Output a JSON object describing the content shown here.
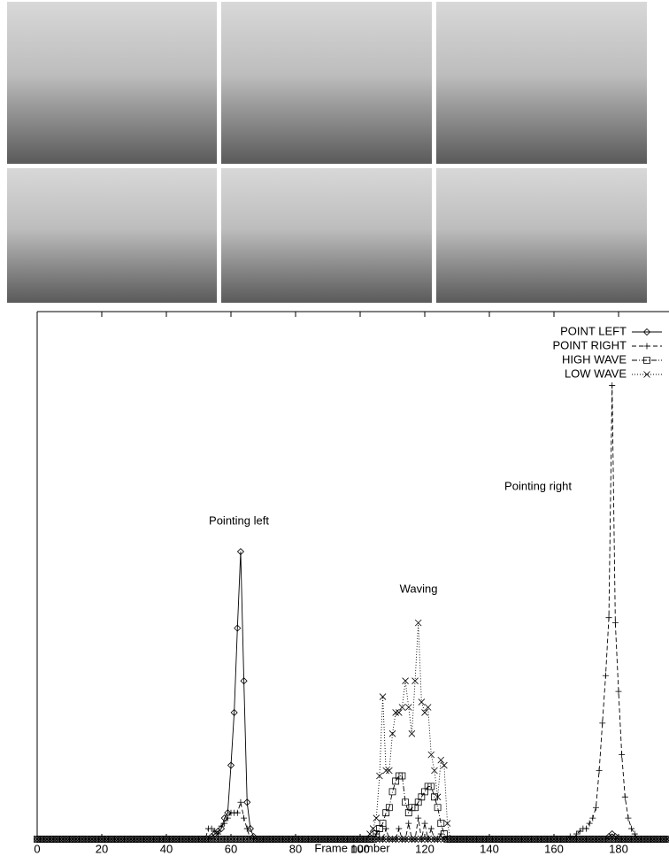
{
  "chart_data": {
    "type": "line",
    "x_label": "Frame number",
    "annotations": [
      "Pointing left",
      "Waving",
      "Pointing right"
    ],
    "xlim": [
      0,
      195
    ],
    "ylim": [
      0,
      1
    ],
    "xticks": [
      0,
      20,
      40,
      60,
      80,
      100,
      120,
      140,
      160,
      180
    ],
    "legend": "top-right",
    "x": [
      0,
      1,
      2,
      3,
      4,
      5,
      6,
      7,
      8,
      9,
      10,
      11,
      12,
      13,
      14,
      15,
      16,
      17,
      18,
      19,
      20,
      21,
      22,
      23,
      24,
      25,
      26,
      27,
      28,
      29,
      30,
      31,
      32,
      33,
      34,
      35,
      36,
      37,
      38,
      39,
      40,
      41,
      42,
      43,
      44,
      45,
      46,
      47,
      48,
      49,
      50,
      51,
      52,
      53,
      54,
      55,
      56,
      57,
      58,
      59,
      60,
      61,
      62,
      63,
      64,
      65,
      66,
      67,
      68,
      69,
      70,
      71,
      72,
      73,
      74,
      75,
      76,
      77,
      78,
      79,
      80,
      81,
      82,
      83,
      84,
      85,
      86,
      87,
      88,
      89,
      90,
      91,
      92,
      93,
      94,
      95,
      96,
      97,
      98,
      99,
      100,
      101,
      102,
      103,
      104,
      105,
      106,
      107,
      108,
      109,
      110,
      111,
      112,
      113,
      114,
      115,
      116,
      117,
      118,
      119,
      120,
      121,
      122,
      123,
      124,
      125,
      126,
      127,
      128,
      129,
      130,
      131,
      132,
      133,
      134,
      135,
      136,
      137,
      138,
      139,
      140,
      141,
      142,
      143,
      144,
      145,
      146,
      147,
      148,
      149,
      150,
      151,
      152,
      153,
      154,
      155,
      156,
      157,
      158,
      159,
      160,
      161,
      162,
      163,
      164,
      165,
      166,
      167,
      168,
      169,
      170,
      171,
      172,
      173,
      174,
      175,
      176,
      177,
      178,
      179,
      180,
      181,
      182,
      183,
      184,
      185,
      186,
      187,
      188,
      189,
      190,
      191,
      192,
      193,
      194,
      195
    ],
    "series": [
      {
        "name": "POINT LEFT",
        "color": "#000000",
        "dash": "none",
        "marker": "diamond",
        "values": [
          0,
          0,
          0,
          0,
          0,
          0,
          0,
          0,
          0,
          0,
          0,
          0,
          0,
          0,
          0,
          0,
          0,
          0,
          0,
          0,
          0,
          0,
          0,
          0,
          0,
          0,
          0,
          0,
          0,
          0,
          0,
          0,
          0,
          0,
          0,
          0,
          0,
          0,
          0,
          0,
          0,
          0,
          0,
          0,
          0,
          0,
          0,
          0,
          0,
          0,
          0,
          0,
          0,
          0,
          0.005,
          0.01,
          0.015,
          0.02,
          0.04,
          0.05,
          0.14,
          0.24,
          0.4,
          0.545,
          0.3,
          0.07,
          0.02,
          0.005,
          0,
          0,
          0,
          0,
          0,
          0,
          0,
          0,
          0,
          0,
          0,
          0,
          0,
          0,
          0,
          0,
          0,
          0,
          0,
          0,
          0,
          0,
          0,
          0,
          0,
          0,
          0,
          0,
          0,
          0,
          0,
          0,
          0,
          0,
          0,
          0,
          0,
          0,
          0,
          0,
          0,
          0,
          0,
          0,
          0,
          0,
          0,
          0,
          0,
          0,
          0,
          0,
          0,
          0,
          0,
          0,
          0,
          0,
          0,
          0,
          0,
          0,
          0,
          0,
          0,
          0,
          0,
          0,
          0,
          0,
          0,
          0,
          0,
          0,
          0,
          0,
          0,
          0,
          0,
          0,
          0,
          0,
          0,
          0,
          0,
          0,
          0,
          0,
          0,
          0,
          0,
          0,
          0,
          0,
          0,
          0,
          0,
          0,
          0,
          0,
          0,
          0,
          0,
          0,
          0,
          0,
          0,
          0,
          0,
          0.005,
          0.01,
          0.005,
          0,
          0,
          0,
          0,
          0,
          0,
          0,
          0,
          0,
          0,
          0,
          0,
          0,
          0,
          0,
          0
        ]
      },
      {
        "name": "POINT RIGHT",
        "color": "#000000",
        "dash": "5,3",
        "marker": "plus",
        "values": [
          0,
          0,
          0,
          0,
          0,
          0,
          0,
          0,
          0,
          0,
          0,
          0,
          0,
          0,
          0,
          0,
          0,
          0,
          0,
          0,
          0,
          0,
          0,
          0,
          0,
          0,
          0,
          0,
          0,
          0,
          0,
          0,
          0,
          0,
          0,
          0,
          0,
          0,
          0,
          0,
          0,
          0,
          0,
          0,
          0,
          0,
          0,
          0,
          0,
          0,
          0,
          0,
          0,
          0.02,
          0.02,
          0.015,
          0.01,
          0.025,
          0.03,
          0.04,
          0.05,
          0.05,
          0.05,
          0.07,
          0.04,
          0.02,
          0,
          0,
          0,
          0,
          0,
          0,
          0,
          0,
          0,
          0,
          0,
          0,
          0,
          0,
          0,
          0,
          0,
          0,
          0,
          0,
          0,
          0,
          0,
          0,
          0,
          0,
          0,
          0,
          0,
          0,
          0,
          0,
          0,
          0,
          0,
          0,
          0,
          0,
          0,
          0.01,
          0,
          0,
          0.02,
          0,
          0,
          0,
          0.02,
          0,
          0,
          0.03,
          0,
          0,
          0.04,
          0,
          0.03,
          0,
          0.02,
          0,
          0,
          0.01,
          0,
          0,
          0,
          0,
          0,
          0,
          0,
          0,
          0,
          0,
          0,
          0,
          0,
          0,
          0,
          0,
          0,
          0,
          0,
          0,
          0,
          0,
          0,
          0,
          0,
          0,
          0,
          0,
          0,
          0,
          0,
          0,
          0,
          0,
          0,
          0,
          0,
          0,
          0,
          0.005,
          0,
          0.01,
          0.015,
          0.02,
          0.02,
          0.03,
          0.04,
          0.06,
          0.13,
          0.22,
          0.31,
          0.42,
          0.86,
          0.41,
          0.28,
          0.16,
          0.08,
          0.04,
          0.02,
          0.01,
          0,
          0,
          0,
          0,
          0,
          0,
          0,
          0,
          0,
          0
        ]
      },
      {
        "name": "HIGH WAVE",
        "color": "#000000",
        "dash": "6,2,1,2",
        "marker": "square",
        "values": [
          0,
          0,
          0,
          0,
          0,
          0,
          0,
          0,
          0,
          0,
          0,
          0,
          0,
          0,
          0,
          0,
          0,
          0,
          0,
          0,
          0,
          0,
          0,
          0,
          0,
          0,
          0,
          0,
          0,
          0,
          0,
          0,
          0,
          0,
          0,
          0,
          0,
          0,
          0,
          0,
          0,
          0,
          0,
          0,
          0,
          0,
          0,
          0,
          0,
          0,
          0,
          0,
          0,
          0,
          0,
          0,
          0,
          0,
          0,
          0,
          0,
          0,
          0,
          0,
          0,
          0,
          0,
          0,
          0,
          0,
          0,
          0,
          0,
          0,
          0,
          0,
          0,
          0,
          0,
          0,
          0,
          0,
          0,
          0,
          0,
          0,
          0,
          0,
          0,
          0,
          0,
          0,
          0,
          0,
          0,
          0,
          0,
          0,
          0,
          0,
          0,
          0,
          0,
          0,
          0,
          0.01,
          0.02,
          0.03,
          0.05,
          0.06,
          0.09,
          0.11,
          0.12,
          0.12,
          0.07,
          0.05,
          0.06,
          0.06,
          0.07,
          0.08,
          0.09,
          0.1,
          0.1,
          0.08,
          0.06,
          0.03,
          0.01,
          0,
          0,
          0,
          0,
          0,
          0,
          0,
          0,
          0,
          0,
          0,
          0,
          0,
          0,
          0,
          0,
          0,
          0,
          0,
          0,
          0,
          0,
          0,
          0,
          0,
          0,
          0,
          0,
          0,
          0,
          0,
          0,
          0,
          0,
          0,
          0,
          0,
          0,
          0,
          0,
          0,
          0,
          0,
          0,
          0,
          0,
          0,
          0,
          0,
          0,
          0,
          0,
          0,
          0,
          0,
          0,
          0,
          0,
          0,
          0,
          0,
          0,
          0,
          0,
          0,
          0,
          0,
          0,
          0
        ]
      },
      {
        "name": "LOW WAVE",
        "color": "#000000",
        "dash": "1,2",
        "marker": "cross",
        "values": [
          0,
          0,
          0,
          0,
          0,
          0,
          0,
          0,
          0,
          0,
          0,
          0,
          0,
          0,
          0,
          0,
          0,
          0,
          0,
          0,
          0,
          0,
          0,
          0,
          0,
          0,
          0,
          0,
          0,
          0,
          0,
          0,
          0,
          0,
          0,
          0,
          0,
          0,
          0,
          0,
          0,
          0,
          0,
          0,
          0,
          0,
          0,
          0,
          0,
          0,
          0,
          0,
          0,
          0,
          0,
          0,
          0,
          0,
          0,
          0,
          0,
          0,
          0,
          0,
          0,
          0,
          0,
          0,
          0,
          0,
          0,
          0,
          0,
          0,
          0,
          0,
          0,
          0,
          0,
          0,
          0,
          0,
          0,
          0,
          0,
          0,
          0,
          0,
          0,
          0,
          0,
          0,
          0,
          0,
          0,
          0,
          0,
          0,
          0,
          0,
          0,
          0,
          0,
          0.01,
          0.02,
          0.04,
          0.12,
          0.27,
          0.13,
          0.13,
          0.2,
          0.24,
          0.24,
          0.25,
          0.3,
          0.25,
          0.2,
          0.3,
          0.41,
          0.26,
          0.24,
          0.25,
          0.16,
          0.13,
          0.08,
          0.15,
          0.14,
          0.03,
          0,
          0,
          0,
          0,
          0,
          0,
          0,
          0,
          0,
          0,
          0,
          0,
          0,
          0,
          0,
          0,
          0,
          0,
          0,
          0,
          0,
          0,
          0,
          0,
          0,
          0,
          0,
          0,
          0,
          0,
          0,
          0,
          0,
          0,
          0,
          0,
          0,
          0,
          0,
          0,
          0,
          0,
          0,
          0,
          0,
          0,
          0,
          0,
          0,
          0,
          0,
          0,
          0,
          0,
          0,
          0,
          0,
          0,
          0,
          0,
          0,
          0,
          0,
          0,
          0,
          0,
          0,
          0
        ]
      }
    ]
  }
}
